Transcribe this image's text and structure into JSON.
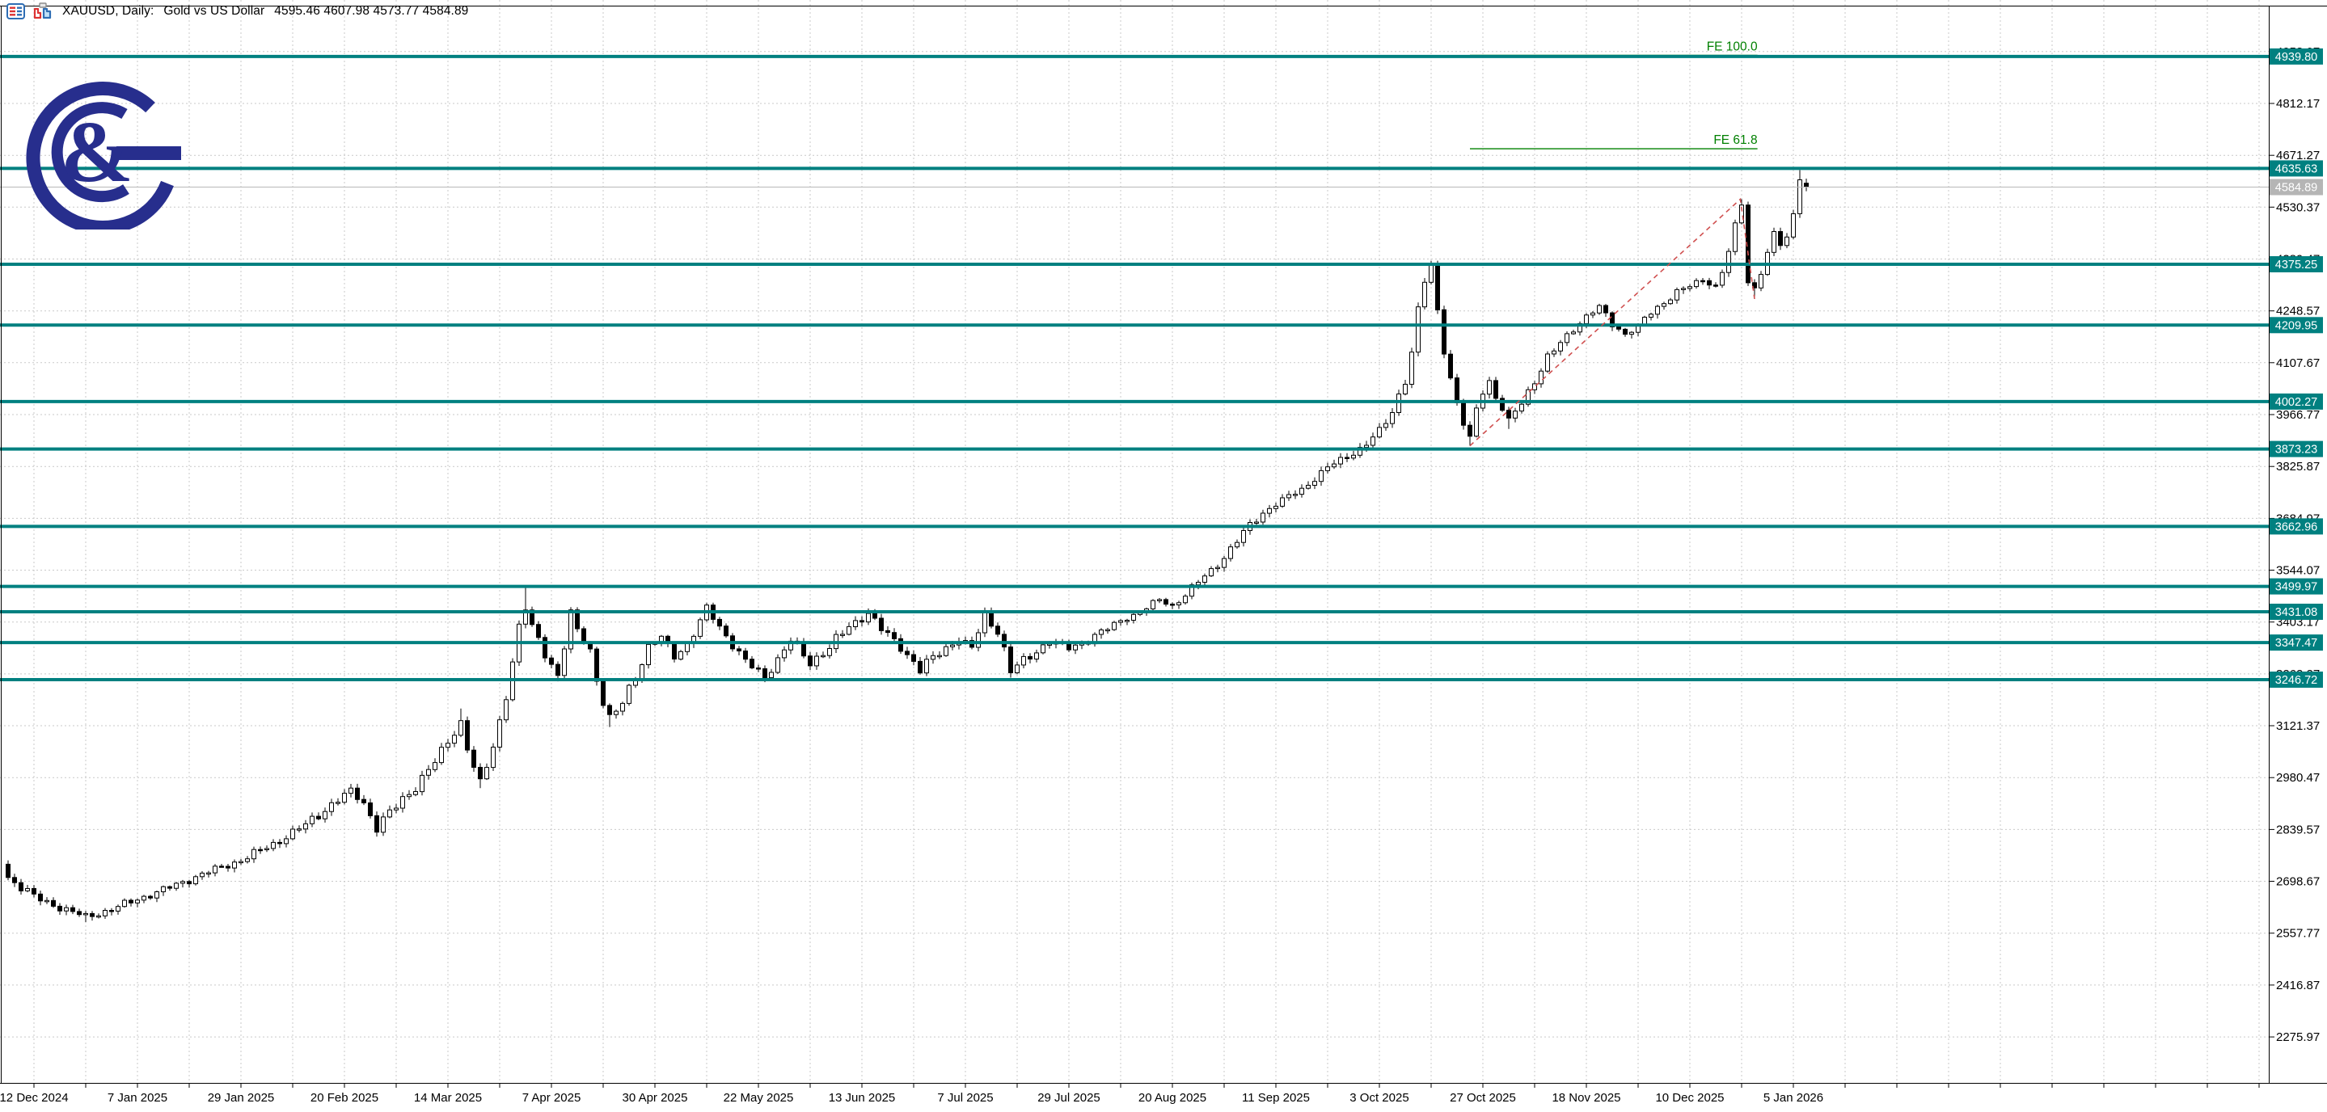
{
  "window": {
    "app_context": "trading-chart-window",
    "title": {
      "symbol_period": "XAUUSD, Daily:",
      "description": "Gold vs US Dollar",
      "ohlc_text": "4595.46 4607.98 4573.77 4584.89"
    },
    "title_icons": [
      {
        "name": "quotes-list-icon"
      },
      {
        "name": "candlestick-chart-icon"
      }
    ],
    "logo": {
      "name": "g-ampersand-broker-logo",
      "glyph": "&",
      "color": "#272E8D"
    }
  },
  "colors": {
    "background": "#FFFFFF",
    "grid": "#C9C9C9",
    "frame": "#000000",
    "level_line": "#008080",
    "badge_teal": "#008080",
    "badge_gray": "#B5B5B5",
    "current_price_line": "#B8B8B8",
    "fib_dashed_line": "#D05050",
    "fe_green": "#008000",
    "bull_body": "#FFFFFF",
    "bear_body": "#000000",
    "candle_outline": "#000000"
  },
  "price_axis": {
    "ticks": [
      "4953.07",
      "4812.17",
      "4671.27",
      "4530.37",
      "4389.47",
      "4248.57",
      "4107.67",
      "3966.77",
      "3825.87",
      "3684.97",
      "3544.07",
      "3403.17",
      "3262.27",
      "3121.37",
      "2980.47",
      "2839.57",
      "2698.67",
      "2557.77",
      "2416.87",
      "2275.97"
    ],
    "tick_values": [
      4953.07,
      4812.17,
      4671.27,
      4530.37,
      4389.47,
      4248.57,
      4107.67,
      3966.77,
      3825.87,
      3684.97,
      3544.07,
      3403.17,
      3262.27,
      3121.37,
      2980.47,
      2839.57,
      2698.67,
      2557.77,
      2416.87,
      2275.97
    ],
    "current_price_badge": {
      "label": "4584.89",
      "value": 4584.89
    }
  },
  "time_axis": {
    "labels": [
      "12 Dec 2024",
      "7 Jan 2025",
      "29 Jan 2025",
      "20 Feb 2025",
      "14 Mar 2025",
      "7 Apr 2025",
      "30 Apr 2025",
      "22 May 2025",
      "13 Jun 2025",
      "7 Jul 2025",
      "29 Jul 2025",
      "20 Aug 2025",
      "11 Sep 2025",
      "3 Oct 2025",
      "27 Oct 2025",
      "18 Nov 2025",
      "10 Dec 2025",
      "5 Jan 2026"
    ]
  },
  "chart_data": {
    "type": "candlestick",
    "symbol": "XAUUSD",
    "timeframe": "Daily",
    "title": "Gold vs US Dollar",
    "x_range_labels": [
      "12 Dec 2024",
      "5 Jan 2026"
    ],
    "y_axis": {
      "top_tick": 4953.07,
      "bottom_tick": 2275.97,
      "tick_step": 140.9,
      "grid": true
    },
    "last_candle": {
      "open": 4595.46,
      "high": 4607.98,
      "low": 4573.77,
      "close": 4584.89
    },
    "horizontal_levels": [
      {
        "label": "4939.80",
        "price": 4939.8
      },
      {
        "label": "4635.63",
        "price": 4635.63
      },
      {
        "label": "4375.25",
        "price": 4375.25
      },
      {
        "label": "4209.95",
        "price": 4209.95
      },
      {
        "label": "4002.27",
        "price": 4002.27
      },
      {
        "label": "3873.23",
        "price": 3873.23
      },
      {
        "label": "3662.96",
        "price": 3662.96
      },
      {
        "label": "3499.97",
        "price": 3499.97
      },
      {
        "label": "3431.08",
        "price": 3431.08
      },
      {
        "label": "3347.47",
        "price": 3347.47
      },
      {
        "label": "3246.72",
        "price": 3246.72
      }
    ],
    "fibonacci_expansion": {
      "points": [
        {
          "day": 226,
          "price": 3882
        },
        {
          "day": 267.8,
          "price": 4552
        },
        {
          "day": 270,
          "price": 4281
        }
      ],
      "levels": [
        {
          "label": "FE 100.0",
          "price": 4943.0
        },
        {
          "label": "FE 61.8",
          "price": 4689.0
        }
      ],
      "level_line_right_day": 269.2
    },
    "anchors": [
      [
        0,
        2710
      ],
      [
        4,
        2656
      ],
      [
        8,
        2628
      ],
      [
        12,
        2602
      ],
      [
        16,
        2622
      ],
      [
        20,
        2650
      ],
      [
        25,
        2682
      ],
      [
        30,
        2718
      ],
      [
        36,
        2756
      ],
      [
        41,
        2800
      ],
      [
        46,
        2852
      ],
      [
        50,
        2908
      ],
      [
        53,
        2942
      ],
      [
        55,
        2912
      ],
      [
        57,
        2845
      ],
      [
        60,
        2902
      ],
      [
        63,
        2958
      ],
      [
        66,
        3022
      ],
      [
        68,
        3078
      ],
      [
        70,
        3132
      ],
      [
        71,
        3062
      ],
      [
        72,
        3008
      ],
      [
        73,
        2968
      ],
      [
        74,
        3010
      ],
      [
        75,
        3065
      ],
      [
        76,
        3135
      ],
      [
        77,
        3205
      ],
      [
        78,
        3295
      ],
      [
        79,
        3385
      ],
      [
        80,
        3438
      ],
      [
        81,
        3392
      ],
      [
        83,
        3322
      ],
      [
        85,
        3255
      ],
      [
        86,
        3335
      ],
      [
        87,
        3422
      ],
      [
        88,
        3382
      ],
      [
        90,
        3328
      ],
      [
        91,
        3248
      ],
      [
        93,
        3130
      ],
      [
        95,
        3185
      ],
      [
        97,
        3262
      ],
      [
        99,
        3332
      ],
      [
        101,
        3362
      ],
      [
        103,
        3312
      ],
      [
        105,
        3342
      ],
      [
        107,
        3402
      ],
      [
        108,
        3442
      ],
      [
        110,
        3392
      ],
      [
        112,
        3342
      ],
      [
        114,
        3295
      ],
      [
        117,
        3255
      ],
      [
        119,
        3302
      ],
      [
        121,
        3352
      ],
      [
        124,
        3295
      ],
      [
        127,
        3332
      ],
      [
        130,
        3392
      ],
      [
        133,
        3428
      ],
      [
        135,
        3382
      ],
      [
        138,
        3338
      ],
      [
        141,
        3272
      ],
      [
        144,
        3322
      ],
      [
        147,
        3358
      ],
      [
        149,
        3332
      ],
      [
        151,
        3422
      ],
      [
        153,
        3378
      ],
      [
        155,
        3268
      ],
      [
        158,
        3312
      ],
      [
        161,
        3352
      ],
      [
        164,
        3332
      ],
      [
        167,
        3355
      ],
      [
        170,
        3385
      ],
      [
        172,
        3408
      ],
      [
        174,
        3422
      ],
      [
        176,
        3440
      ],
      [
        178,
        3465
      ],
      [
        180,
        3448
      ],
      [
        182,
        3475
      ],
      [
        184,
        3512
      ],
      [
        186,
        3545
      ],
      [
        188,
        3578
      ],
      [
        190,
        3622
      ],
      [
        192,
        3668
      ],
      [
        194,
        3700
      ],
      [
        196,
        3722
      ],
      [
        198,
        3745
      ],
      [
        200,
        3765
      ],
      [
        202,
        3792
      ],
      [
        204,
        3822
      ],
      [
        206,
        3845
      ],
      [
        208,
        3862
      ],
      [
        210,
        3885
      ],
      [
        212,
        3922
      ],
      [
        214,
        3978
      ],
      [
        216,
        4062
      ],
      [
        217,
        4132
      ],
      [
        218,
        4242
      ],
      [
        219,
        4332
      ],
      [
        220,
        4372
      ],
      [
        221,
        4252
      ],
      [
        222,
        4150
      ],
      [
        223,
        4062
      ],
      [
        224,
        3992
      ],
      [
        225,
        3940
      ],
      [
        226,
        3902
      ],
      [
        227,
        3985
      ],
      [
        228,
        4032
      ],
      [
        229,
        4058
      ],
      [
        230,
        4012
      ],
      [
        231,
        3980
      ],
      [
        232,
        3950
      ],
      [
        234,
        4002
      ],
      [
        236,
        4060
      ],
      [
        238,
        4118
      ],
      [
        240,
        4162
      ],
      [
        242,
        4202
      ],
      [
        244,
        4232
      ],
      [
        246,
        4258
      ],
      [
        248,
        4215
      ],
      [
        250,
        4185
      ],
      [
        252,
        4205
      ],
      [
        254,
        4245
      ],
      [
        256,
        4272
      ],
      [
        258,
        4300
      ],
      [
        260,
        4315
      ],
      [
        262,
        4335
      ],
      [
        264,
        4315
      ],
      [
        265,
        4355
      ],
      [
        266,
        4408
      ],
      [
        267,
        4475
      ],
      [
        268,
        4542
      ],
      [
        269,
        4338
      ],
      [
        270,
        4310
      ],
      [
        271,
        4355
      ],
      [
        272,
        4405
      ],
      [
        273,
        4455
      ],
      [
        274,
        4428
      ],
      [
        275,
        4448
      ],
      [
        276,
        4512
      ],
      [
        277,
        4626
      ],
      [
        278,
        4584.89
      ]
    ],
    "wick_highs": [
      [
        70,
        3168
      ],
      [
        80,
        3500
      ],
      [
        87,
        3438
      ],
      [
        108,
        3452
      ],
      [
        133,
        3440
      ],
      [
        151,
        3432
      ],
      [
        220,
        4381
      ],
      [
        268,
        4552
      ],
      [
        277,
        4631
      ]
    ],
    "wick_lows": [
      [
        12,
        2588
      ],
      [
        57,
        2832
      ],
      [
        73,
        2952
      ],
      [
        85,
        3242
      ],
      [
        93,
        3118
      ],
      [
        117,
        3245
      ],
      [
        141,
        3262
      ],
      [
        155,
        3252
      ],
      [
        226,
        3882
      ],
      [
        232,
        3928
      ],
      [
        270,
        4281
      ]
    ]
  }
}
